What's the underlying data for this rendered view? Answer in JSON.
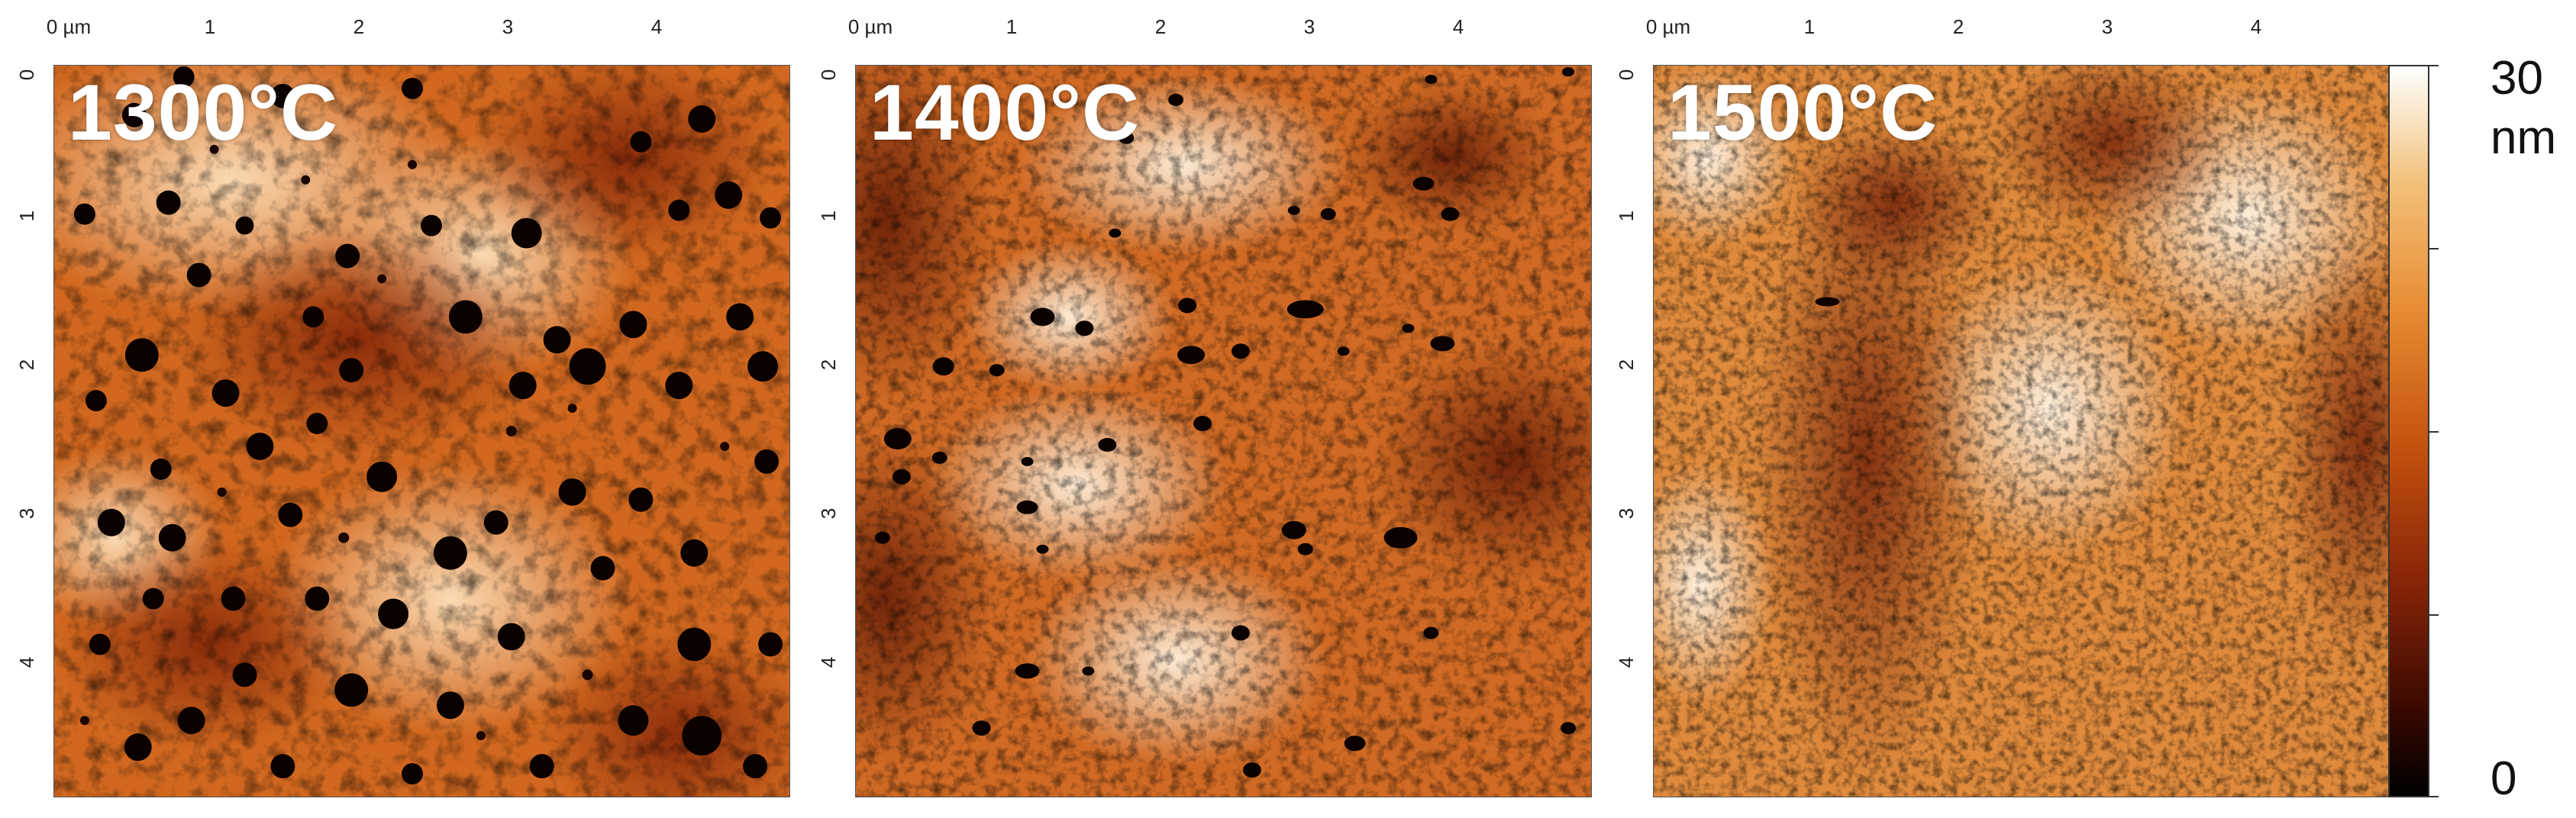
{
  "panels": [
    {
      "temperature": "1300°C",
      "x_ticks": [
        "0 µm",
        "1",
        "2",
        "3",
        "4"
      ],
      "y_ticks": [
        "0",
        "1",
        "2",
        "3",
        "4"
      ]
    },
    {
      "temperature": "1400°C",
      "x_ticks": [
        "0 µm",
        "1",
        "2",
        "3",
        "4"
      ],
      "y_ticks": [
        "0",
        "1",
        "2",
        "3",
        "4"
      ]
    },
    {
      "temperature": "1500°C",
      "x_ticks": [
        "0 µm",
        "1",
        "2",
        "3",
        "4"
      ],
      "y_ticks": [
        "0",
        "1",
        "2",
        "3",
        "4"
      ]
    }
  ],
  "colorbar": {
    "max_value": "30",
    "unit": "nm",
    "min_value": "0"
  },
  "colors": {
    "dark": "#000000",
    "mid": "#c4520f",
    "light": "#ffffff"
  }
}
